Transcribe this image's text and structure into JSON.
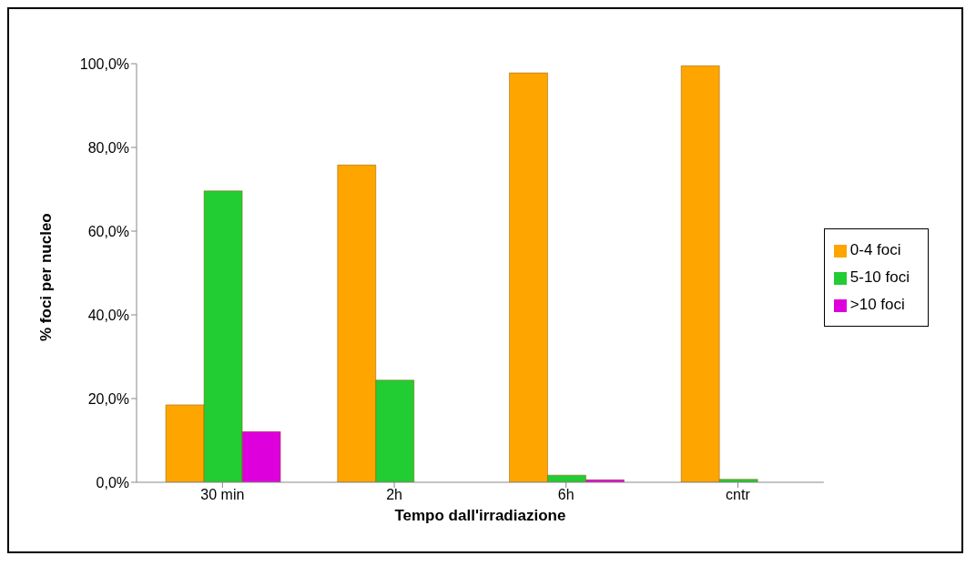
{
  "chart_data": {
    "type": "bar",
    "xlabel": "Tempo dall'irradiazione",
    "ylabel": "% foci per nucleo",
    "categories": [
      "30 min",
      "2h",
      "6h",
      "cntr"
    ],
    "series": [
      {
        "name": "0-4 foci",
        "color": "#ffa500",
        "values": [
          18.5,
          75.8,
          97.8,
          99.5
        ]
      },
      {
        "name": "5-10 foci",
        "color": "#22cc33",
        "values": [
          69.6,
          24.4,
          1.7,
          0.7
        ]
      },
      {
        "name": ">10 foci",
        "color": "#dd00dd",
        "values": [
          12.1,
          0,
          0.6,
          0
        ]
      }
    ],
    "ylim": [
      0,
      100
    ],
    "yticks": [
      {
        "value": 0,
        "label": "0,0%"
      },
      {
        "value": 20,
        "label": "20,0%"
      },
      {
        "value": 40,
        "label": "40,0%"
      },
      {
        "value": 60,
        "label": "60,0%"
      },
      {
        "value": 80,
        "label": "80,0%"
      },
      {
        "value": 100,
        "label": "100,0%"
      }
    ],
    "grid": false,
    "legend": "right"
  }
}
